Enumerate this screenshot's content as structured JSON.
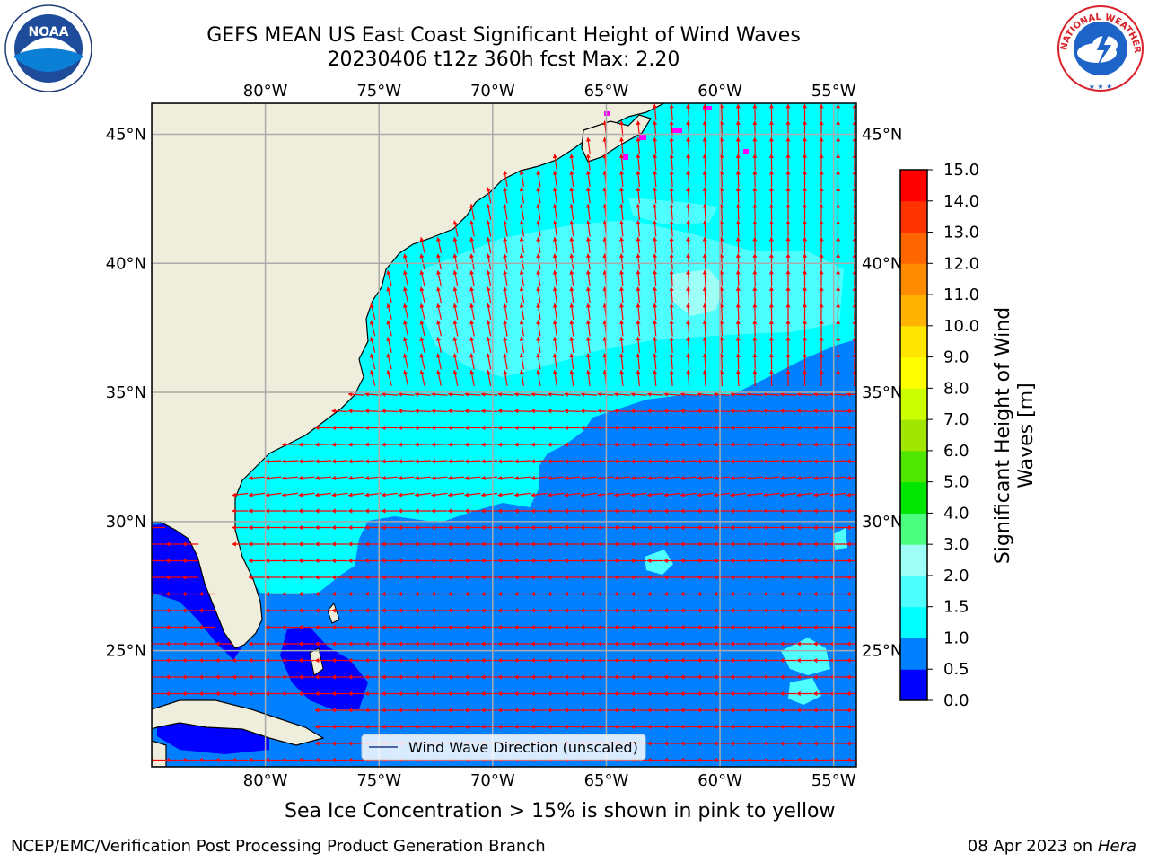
{
  "title": {
    "line1": "GEFS MEAN US East Coast Significant Height of Wind Waves",
    "line2": "20230406 t12z 360h fcst   Max: 2.20"
  },
  "logos": {
    "left": {
      "icon": "noaa-logo",
      "text": "NOAA"
    },
    "right": {
      "icon": "nws-logo",
      "text": "NATIONAL WEATHER SERVICE"
    }
  },
  "map": {
    "lon_range": [
      -85,
      -54
    ],
    "lat_range": [
      20.5,
      46.2
    ],
    "lon_ticks": [
      "80°W",
      "75°W",
      "70°W",
      "65°W",
      "60°W",
      "55°W"
    ],
    "lat_ticks": [
      "45°N",
      "40°N",
      "35°N",
      "30°N",
      "25°N"
    ],
    "gridlines": true,
    "land_color": "#efeedc",
    "arrow_color": "#ff0000",
    "legend": {
      "label": "Wind Wave Direction (unscaled)",
      "placement": "bottom-center"
    }
  },
  "colorbar": {
    "label": "Significant Height of Wind Waves [m]",
    "levels": [
      0.0,
      0.5,
      1.0,
      1.5,
      2.0,
      3.0,
      4.0,
      5.0,
      6.0,
      7.0,
      8.0,
      9.0,
      10.0,
      11.0,
      12.0,
      13.0,
      14.0,
      15.0
    ],
    "tick_labels": [
      "0.0",
      "0.5",
      "1.0",
      "1.5",
      "2.0",
      "3.0",
      "4.0",
      "5.0",
      "6.0",
      "7.0",
      "8.0",
      "9.0",
      "10.0",
      "11.0",
      "12.0",
      "13.0",
      "14.0",
      "15.0"
    ],
    "colors": [
      "#0000ff",
      "#0080ff",
      "#00ffff",
      "#4dffff",
      "#9efff7",
      "#4dff80",
      "#00e600",
      "#4fe600",
      "#a0e600",
      "#ccff00",
      "#ffff00",
      "#ffe600",
      "#ffb300",
      "#ff8c00",
      "#ff6600",
      "#ff3300",
      "#ff0000"
    ]
  },
  "notes": {
    "ice": "Sea Ice Concentration > 15% is shown in pink to yellow",
    "credit": "NCEP/EMC/Verification Post Processing Product Generation Branch",
    "date": "08 Apr 2023 on ",
    "host": "Hera"
  }
}
